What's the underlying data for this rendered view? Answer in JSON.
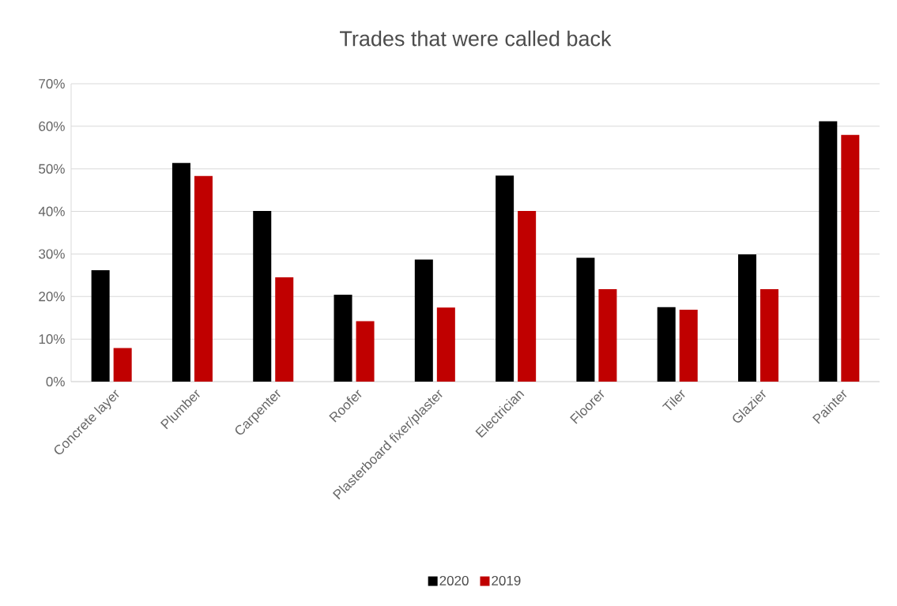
{
  "chart_data": {
    "type": "bar",
    "title": "Trades that were called back",
    "categories": [
      "Concrete layer",
      "Plumber",
      "Carpenter",
      "Roofer",
      "Plasterboard fixer/plaster",
      "Electrician",
      "Floorer",
      "Tiler",
      "Glazier",
      "Painter"
    ],
    "series": [
      {
        "name": "2020",
        "color": "#000000",
        "values": [
          26.2,
          51.4,
          40.1,
          20.4,
          28.7,
          48.4,
          29.1,
          17.5,
          29.9,
          61.2
        ]
      },
      {
        "name": "2019",
        "color": "#c00000",
        "values": [
          7.9,
          48.3,
          24.5,
          14.2,
          17.4,
          40.1,
          21.7,
          16.9,
          21.7,
          58.0
        ]
      }
    ],
    "ylim": [
      0,
      70
    ],
    "yticks": [
      {
        "value": 0,
        "label": "0%"
      },
      {
        "value": 10,
        "label": "10%"
      },
      {
        "value": 20,
        "label": "20%"
      },
      {
        "value": 30,
        "label": "30%"
      },
      {
        "value": 40,
        "label": "40%"
      },
      {
        "value": 50,
        "label": "50%"
      },
      {
        "value": 60,
        "label": "60%"
      },
      {
        "value": 70,
        "label": "70%"
      }
    ],
    "grid": "y",
    "legend": "bottom"
  }
}
